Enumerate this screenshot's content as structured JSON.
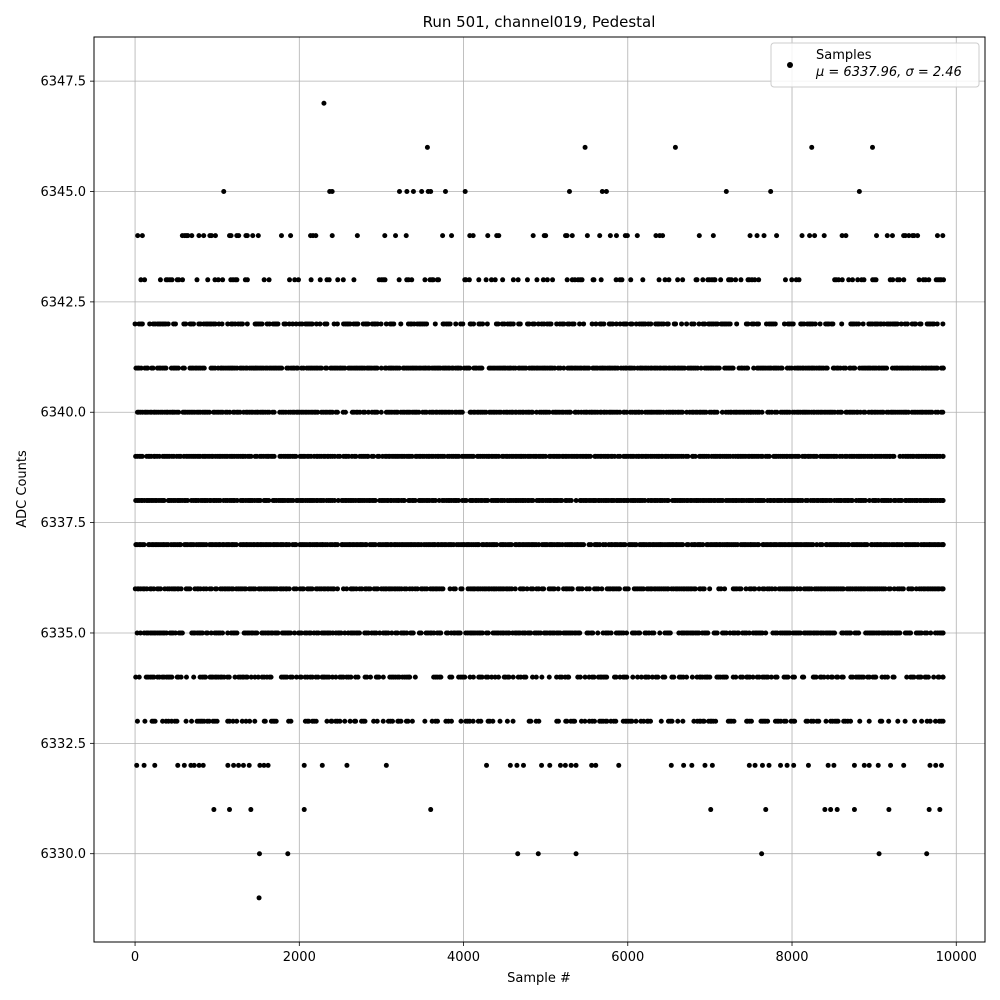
{
  "chart_data": {
    "type": "scatter",
    "title": "Run 501, channel019, Pedestal",
    "xlabel": "Sample #",
    "ylabel": "ADC Counts",
    "xlim": [
      -500,
      10350
    ],
    "ylim": [
      6328.0,
      6348.5
    ],
    "xticks": [
      0,
      2000,
      4000,
      6000,
      8000,
      10000
    ],
    "yticks": [
      6330.0,
      6332.5,
      6335.0,
      6337.5,
      6340.0,
      6342.5,
      6345.0,
      6347.5
    ],
    "xtick_labels": [
      "0",
      "2000",
      "4000",
      "6000",
      "8000",
      "10000"
    ],
    "ytick_labels": [
      "6330.0",
      "6332.5",
      "6335.0",
      "6337.5",
      "6340.0",
      "6342.5",
      "6345.0",
      "6347.5"
    ],
    "grid": true,
    "legend": {
      "placement": "top-right",
      "label": "Samples",
      "stats": "μ = 6337.96, σ = 2.46"
    },
    "marker_color": "#000000",
    "sample_count": 9850,
    "series": [
      {
        "values_by_level": [
          {
            "y": 6329,
            "x": [
              1510
            ]
          },
          {
            "y": 6330,
            "x": [
              1515,
              1860,
              4660,
              4910,
              5370,
              7630,
              9060,
              9640
            ]
          },
          {
            "y": 6331,
            "x": [
              960,
              1150,
              1410,
              2060,
              3600,
              7010,
              7680,
              8400,
              8470,
              8550,
              8760,
              9180,
              9670,
              9800
            ]
          },
          {
            "y": 6332,
            "x": [
              20,
              110,
              240,
              520,
              600,
              680,
              720,
              780,
              830,
              1130,
              1200,
              1260,
              1320,
              1390,
              1520,
              1570,
              1620,
              2060,
              2280,
              2580,
              3060,
              4280,
              4570,
              4650,
              4730,
              4950,
              5050,
              5180,
              5240,
              5310,
              5370,
              5560,
              5610,
              5890,
              6530,
              6680,
              6780,
              6940,
              7030,
              7480,
              7550,
              7640,
              7720,
              7860,
              7940,
              8020,
              8200,
              8440,
              8510,
              8760,
              8880,
              8940,
              9050,
              9200,
              9360,
              9680,
              9750,
              9820
            ]
          }
        ],
        "dense_levels": [
          6333,
          6334,
          6335,
          6336,
          6337,
          6338,
          6339,
          6340,
          6341,
          6342,
          6343,
          6344
        ],
        "sparse_points": [
          {
            "x": 1080,
            "y": 6345
          },
          {
            "x": 2370,
            "y": 6345
          },
          {
            "x": 2400,
            "y": 6345
          },
          {
            "x": 3220,
            "y": 6345
          },
          {
            "x": 3310,
            "y": 6345
          },
          {
            "x": 3390,
            "y": 6345
          },
          {
            "x": 3490,
            "y": 6345
          },
          {
            "x": 3570,
            "y": 6345
          },
          {
            "x": 3600,
            "y": 6345
          },
          {
            "x": 3780,
            "y": 6345
          },
          {
            "x": 4020,
            "y": 6345
          },
          {
            "x": 5290,
            "y": 6345
          },
          {
            "x": 5690,
            "y": 6345
          },
          {
            "x": 5740,
            "y": 6345
          },
          {
            "x": 7200,
            "y": 6345
          },
          {
            "x": 7740,
            "y": 6345
          },
          {
            "x": 8820,
            "y": 6345
          },
          {
            "x": 3560,
            "y": 6346
          },
          {
            "x": 5480,
            "y": 6346
          },
          {
            "x": 6580,
            "y": 6346
          },
          {
            "x": 8240,
            "y": 6346
          },
          {
            "x": 8980,
            "y": 6346
          },
          {
            "x": 2300,
            "y": 6347
          }
        ]
      }
    ]
  }
}
